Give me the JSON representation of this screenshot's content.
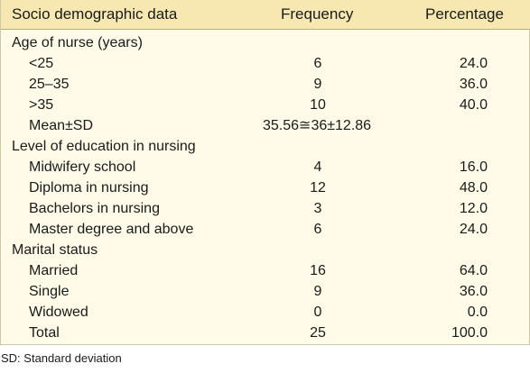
{
  "header": {
    "col1": "Socio demographic data",
    "col2": "Frequency",
    "col3": "Percentage"
  },
  "sections": [
    {
      "title": "Age of nurse (years)",
      "rows": [
        {
          "label": "<25",
          "freq": "6",
          "pct": "24.0"
        },
        {
          "label": "25–35",
          "freq": "9",
          "pct": "36.0"
        },
        {
          "label": ">35",
          "freq": "10",
          "pct": "40.0"
        },
        {
          "label": "Mean±SD",
          "freq": "35.56≅36±12.86",
          "pct": ""
        }
      ]
    },
    {
      "title": "Level of education in nursing",
      "rows": [
        {
          "label": "Midwifery school",
          "freq": "4",
          "pct": "16.0"
        },
        {
          "label": "Diploma in nursing",
          "freq": "12",
          "pct": "48.0"
        },
        {
          "label": "Bachelors in nursing",
          "freq": "3",
          "pct": "12.0"
        },
        {
          "label": "Master degree and above",
          "freq": "6",
          "pct": "24.0"
        }
      ]
    },
    {
      "title": "Marital status",
      "rows": [
        {
          "label": "Married",
          "freq": "16",
          "pct": "64.0"
        },
        {
          "label": "Single",
          "freq": "9",
          "pct": "36.0"
        },
        {
          "label": "Widowed",
          "freq": "0",
          "pct": "0.0"
        },
        {
          "label": "Total",
          "freq": "25",
          "pct": "100.0"
        }
      ]
    }
  ],
  "footnote": "SD: Standard deviation",
  "colors": {
    "header_bg": "#f6e8b0",
    "body_bg": "#fffbe8"
  }
}
